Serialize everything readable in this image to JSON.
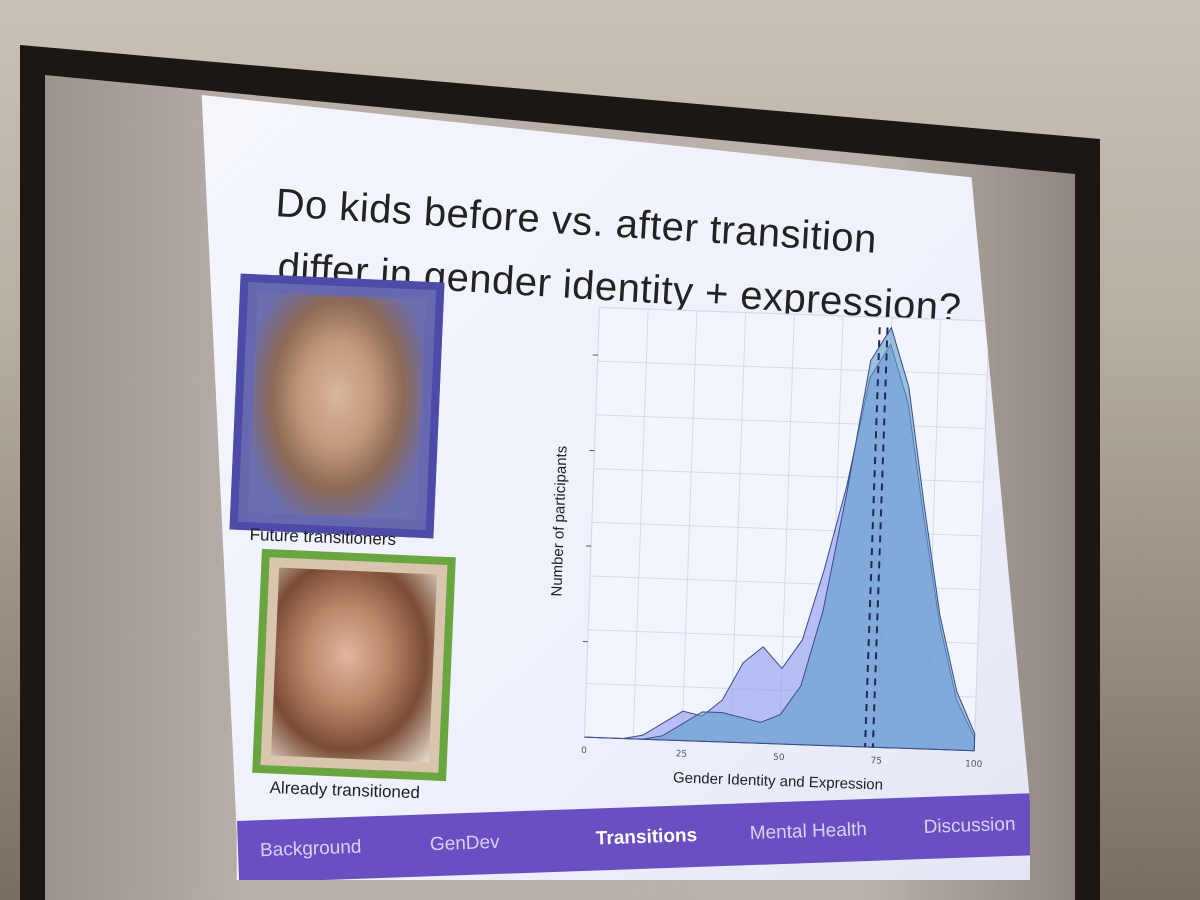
{
  "slide": {
    "title_line1": "Do kids before vs. after transition",
    "title_line2": "differ in gender identity + expression?",
    "photo1_caption": "Future transitioners",
    "photo2_caption": "Already transitioned"
  },
  "nav": {
    "items": [
      {
        "label": "Background",
        "active": false
      },
      {
        "label": "GenDev",
        "active": false
      },
      {
        "label": "Transitions",
        "active": true
      },
      {
        "label": "Mental Health",
        "active": false
      },
      {
        "label": "Discussion",
        "active": false
      }
    ]
  },
  "chart_data": {
    "type": "area",
    "xlabel": "Gender Identity and Expression",
    "ylabel": "Number of participants",
    "xlim": [
      0,
      100
    ],
    "xticks": [
      "0",
      "25",
      "50",
      "75",
      "100"
    ],
    "series": [
      {
        "color": "#8f9af0",
        "x": [
          0,
          10,
          15,
          20,
          25,
          30,
          35,
          40,
          45,
          50,
          55,
          60,
          65,
          70,
          75,
          80,
          85,
          90,
          95,
          100
        ],
        "y": [
          0,
          0,
          0.01,
          0.04,
          0.07,
          0.06,
          0.1,
          0.19,
          0.23,
          0.18,
          0.25,
          0.42,
          0.62,
          0.88,
          0.96,
          0.82,
          0.55,
          0.3,
          0.12,
          0.03
        ],
        "mean": 72
      },
      {
        "color": "#5e9cc8",
        "x": [
          0,
          15,
          20,
          25,
          30,
          35,
          40,
          45,
          50,
          55,
          60,
          65,
          70,
          75,
          80,
          85,
          90,
          95,
          100
        ],
        "y": [
          0,
          0,
          0.01,
          0.04,
          0.07,
          0.07,
          0.06,
          0.05,
          0.07,
          0.14,
          0.32,
          0.6,
          0.92,
          1.0,
          0.86,
          0.58,
          0.32,
          0.14,
          0.04
        ],
        "mean": 74
      }
    ],
    "grid": true
  },
  "colors": {
    "nav_background": "#6a4fc2",
    "photo1_border": "#4e4aa8",
    "photo2_border": "#6aa640"
  }
}
